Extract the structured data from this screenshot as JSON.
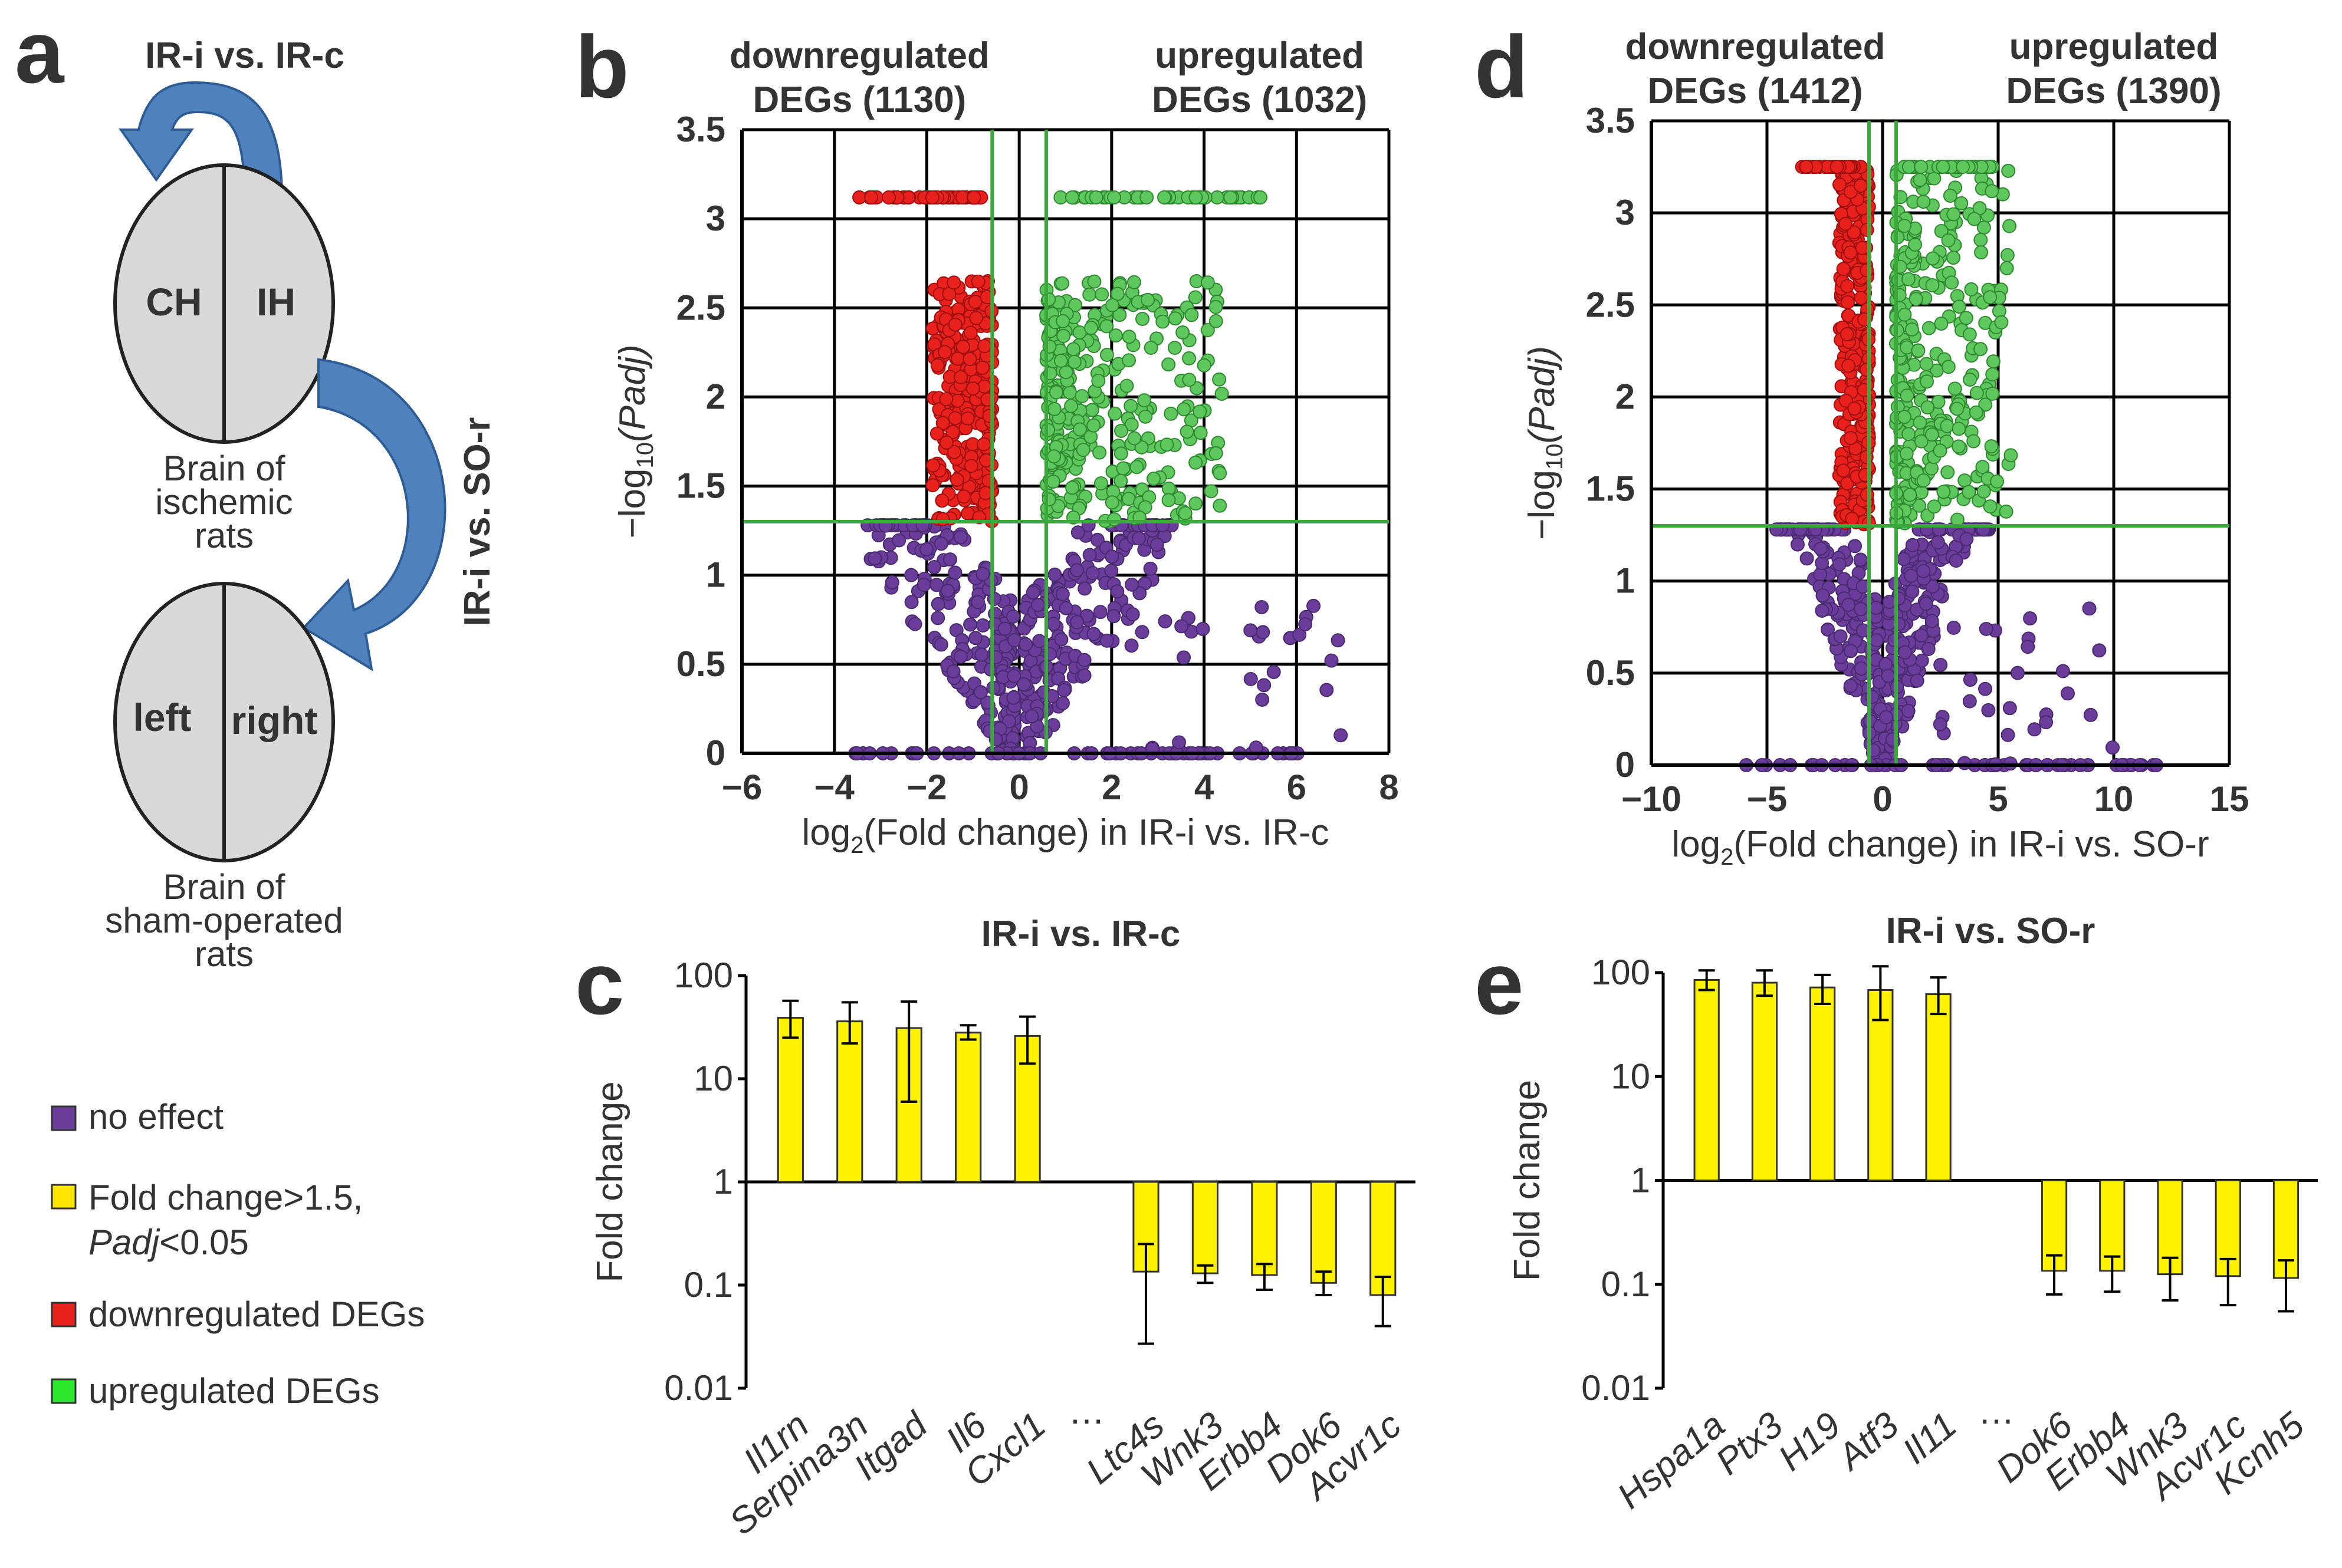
{
  "panels": {
    "a": "a",
    "b": "b",
    "c": "c",
    "d": "d",
    "e": "e"
  },
  "diagram": {
    "arrow_top_label": "IR-i vs. IR-c",
    "arrow_side_label": "IR-i vs. SO-r",
    "brain1_left": "CH",
    "brain1_right": "IH",
    "brain1_caption": [
      "Brain of",
      "ischemic",
      "rats"
    ],
    "brain2_left": "left",
    "brain2_right": "right",
    "brain2_caption": [
      "Brain of",
      "sham-operated",
      "rats"
    ],
    "arrow_color": "#4f81bd"
  },
  "legend": [
    {
      "label": "no effect",
      "color": "#6a3d9a"
    },
    {
      "label": "Fold change>1.5,",
      "label2": "Padj",
      "label3": "<0.05",
      "color": "#ffe600"
    },
    {
      "label": "downregulated DEGs",
      "color": "#e8211d"
    },
    {
      "label": "upregulated DEGs",
      "color": "#2ee82e"
    }
  ],
  "colors": {
    "down": "#e8211d",
    "up": "#5ec85e",
    "none": "#6a3d9a",
    "bar": "#fff200",
    "threshold": "#3aa83a",
    "down_text": "#c8102e",
    "up_text": "#2ea02e"
  },
  "chart_data": [
    {
      "id": "b",
      "type": "scatter",
      "title_down": [
        "downregulated",
        "DEGs (1130)"
      ],
      "title_up": [
        "upregulated",
        "DEGs (1032)"
      ],
      "xlabel_pre": "log",
      "xlabel_sub": "2",
      "xlabel_post": "(Fold change) in IR-i vs. IR-c",
      "ylabel_pre": "−log",
      "ylabel_sub": "10",
      "ylabel_post": "(Padj)",
      "xlim": [
        -6,
        8
      ],
      "ylim": [
        0,
        3.5
      ],
      "xticks": [
        -6,
        -4,
        -2,
        0,
        2,
        4,
        6,
        8
      ],
      "yticks": [
        0,
        0.5,
        1,
        1.5,
        2,
        2.5,
        3,
        3.5
      ],
      "xtick_labels": [
        "−6",
        "−4",
        "−2",
        "0",
        "2",
        "4",
        "6",
        "8"
      ],
      "ytick_labels": [
        "0",
        "0.5",
        "1",
        "1.5",
        "2",
        "2.5",
        "3",
        "3.5"
      ],
      "thresholds": {
        "x": [
          -0.585,
          0.585
        ],
        "y": 1.3
      },
      "downregulated_count": 1130,
      "upregulated_count": 1032
    },
    {
      "id": "d",
      "type": "scatter",
      "title_down": [
        "downregulated",
        "DEGs (1412)"
      ],
      "title_up": [
        "upregulated",
        "DEGs (1390)"
      ],
      "xlabel_pre": "log",
      "xlabel_sub": "2",
      "xlabel_post": "(Fold change) in IR-i vs. SO-r",
      "ylabel_pre": "−log",
      "ylabel_sub": "10",
      "ylabel_post": "(Padj)",
      "xlim": [
        -10,
        15
      ],
      "ylim": [
        0,
        3.5
      ],
      "xticks": [
        -10,
        -5,
        0,
        5,
        10,
        15
      ],
      "yticks": [
        0,
        0.5,
        1,
        1.5,
        2,
        2.5,
        3,
        3.5
      ],
      "xtick_labels": [
        "−10",
        "−5",
        "0",
        "5",
        "10",
        "15"
      ],
      "ytick_labels": [
        "0",
        "0.5",
        "1",
        "1.5",
        "2",
        "2.5",
        "3",
        "3.5"
      ],
      "thresholds": {
        "x": [
          -0.585,
          0.585
        ],
        "y": 1.3
      },
      "downregulated_count": 1412,
      "upregulated_count": 1390
    },
    {
      "id": "c",
      "type": "bar",
      "title": "IR-i vs. IR-c",
      "ylabel": "Fold change",
      "yscale": "log",
      "ylim": [
        0.01,
        100
      ],
      "ytick_labels": [
        "100",
        "10",
        "1",
        "0.1",
        "0.01"
      ],
      "yticks": [
        100,
        10,
        1,
        0.1,
        0.01
      ],
      "categories": [
        "Il1rn",
        "Serpina3n",
        "Itgad",
        "Il6",
        "Cxcl1",
        "…",
        "Ltc4s",
        "Wnk3",
        "Erbb4",
        "Dok6",
        "Acvr1c"
      ],
      "values": [
        39,
        36,
        31,
        28,
        26,
        null,
        0.135,
        0.13,
        0.125,
        0.105,
        0.08
      ],
      "err_high": [
        57,
        55,
        56,
        33,
        40,
        null,
        0.25,
        0.155,
        0.16,
        0.135,
        0.12
      ],
      "err_low": [
        25,
        22,
        6,
        24,
        14,
        null,
        0.027,
        0.105,
        0.09,
        0.08,
        0.04
      ]
    },
    {
      "id": "e",
      "type": "bar",
      "title": "IR-i vs. SO-r",
      "ylabel": "Fold change",
      "yscale": "log",
      "ylim": [
        0.01,
        100
      ],
      "ytick_labels": [
        "100",
        "10",
        "1",
        "0.1",
        "0.01"
      ],
      "yticks": [
        100,
        10,
        1,
        0.1,
        0.01
      ],
      "categories": [
        "Hspa1a",
        "Ptx3",
        "H19",
        "Atf3",
        "Il11",
        "…",
        "Dok6",
        "Erbb4",
        "Wnk3",
        "Acvr1c",
        "Kcnh5"
      ],
      "values": [
        85,
        80,
        72,
        68,
        62,
        null,
        0.135,
        0.135,
        0.125,
        0.12,
        0.115
      ],
      "err_high": [
        105,
        105,
        95,
        115,
        90,
        null,
        0.19,
        0.185,
        0.18,
        0.175,
        0.17
      ],
      "err_low": [
        68,
        60,
        50,
        35,
        40,
        null,
        0.08,
        0.085,
        0.07,
        0.063,
        0.055
      ]
    }
  ]
}
